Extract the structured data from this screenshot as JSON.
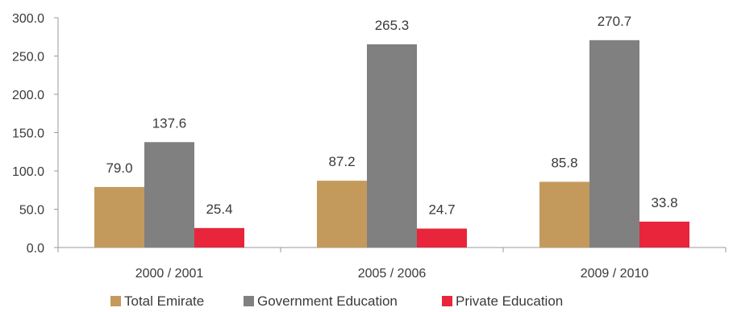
{
  "chart_data": {
    "type": "bar",
    "title": "",
    "xlabel": "",
    "ylabel": "",
    "categories": [
      "2000 / 2001",
      "2005 / 2006",
      "2009 / 2010"
    ],
    "series": [
      {
        "name": "Total Emirate",
        "color": "#c49a5c",
        "values": [
          79.0,
          87.2,
          85.8
        ],
        "labels": [
          "79.0",
          "87.2",
          "85.8"
        ]
      },
      {
        "name": "Government Education",
        "color": "#808080",
        "values": [
          137.6,
          265.3,
          270.7
        ],
        "labels": [
          "137.6",
          "265.3",
          "270.7"
        ]
      },
      {
        "name": "Private Education",
        "color": "#e8253a",
        "values": [
          25.4,
          24.7,
          33.8
        ],
        "labels": [
          "25.4",
          "24.7",
          "33.8"
        ]
      }
    ],
    "ylim": [
      0,
      300
    ],
    "yticks": [
      "0.0",
      "50.0",
      "100.0",
      "150.0",
      "200.0",
      "250.0",
      "300.0"
    ],
    "grid": false,
    "legend": "bottom"
  }
}
